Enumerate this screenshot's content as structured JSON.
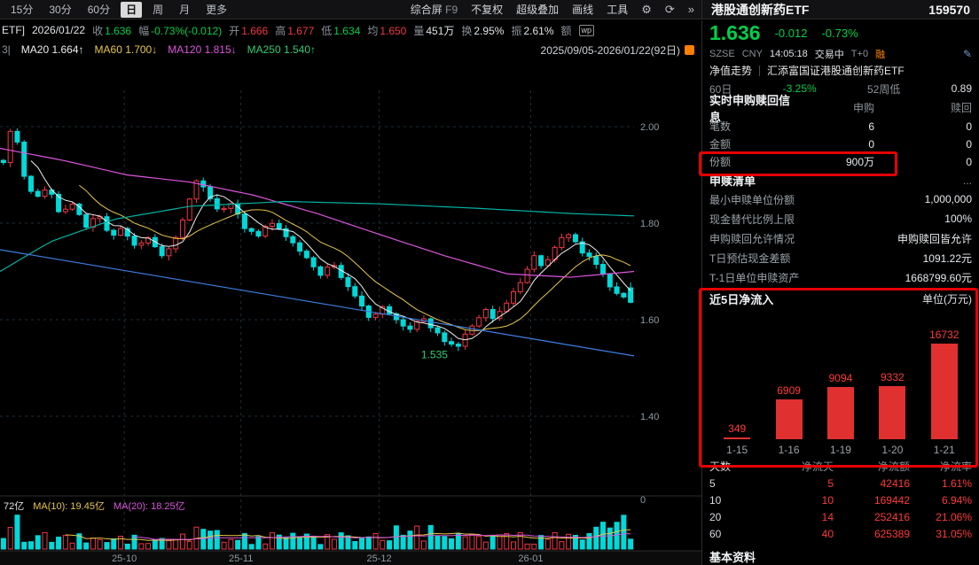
{
  "toolbar": {
    "periods": [
      "15分",
      "30分",
      "60分",
      "日",
      "周",
      "月",
      "更多"
    ],
    "active_period": "日",
    "screen_label": "综合屏",
    "f9": "F9",
    "actions": [
      "不复权",
      "超级叠加",
      "画线",
      "工具"
    ],
    "icons": {
      "gear": "⚙",
      "refresh": "⟳",
      "collapse": "»"
    }
  },
  "quote": {
    "tag": "ETF]",
    "date": "2026/01/22",
    "items": [
      {
        "label": "收",
        "value": "1.636",
        "cls": "down"
      },
      {
        "label": "幅",
        "value": "-0.73%(-0.012)",
        "cls": "down"
      },
      {
        "label": "开",
        "value": "1.666",
        "cls": "up"
      },
      {
        "label": "高",
        "value": "1.677",
        "cls": "up"
      },
      {
        "label": "低",
        "value": "1.634",
        "cls": "down"
      },
      {
        "label": "均",
        "value": "1.650",
        "cls": "up"
      },
      {
        "label": "量",
        "value": "451万",
        "cls": "wh"
      },
      {
        "label": "换",
        "value": "2.95%",
        "cls": "wh"
      },
      {
        "label": "振",
        "value": "2.61%",
        "cls": "wh"
      },
      {
        "label": "额",
        "value": "",
        "cls": "wh"
      }
    ],
    "wp_badge": "wp"
  },
  "ma_bar": {
    "prefix": "3|",
    "items": [
      {
        "label": "MA20 1.664↑",
        "color": "#ededed"
      },
      {
        "label": "MA60 1.700↓",
        "color": "#e8c64a"
      },
      {
        "label": "MA120 1.815↓",
        "color": "#dd55dd"
      },
      {
        "label": "MA250 1.540↑",
        "color": "#2ecc71"
      }
    ],
    "range": "2025/09/05-2026/01/22(92日)"
  },
  "chart_labels": {
    "low_annotation": "1.535",
    "zero": "0",
    "volume_legend": {
      "current": "72亿",
      "ma10": "MA(10): 19.45亿",
      "ma20": "MA(20): 18.25亿"
    }
  },
  "panel": {
    "title": "港股通创新药ETF",
    "code": "159570",
    "price": "1.636",
    "change": "-0.012",
    "change_pct": "-0.73%",
    "info": {
      "exchange": "SZSE",
      "currency": "CNY",
      "time": "14:05:18",
      "status": "交易中",
      "t0": "T+0",
      "margin": "融",
      "pencil": "✎"
    },
    "nav_tab": "净值走势",
    "fund_name": "汇添富国证港股通创新药ETF",
    "stats": {
      "d60_label": "60日",
      "d60": "-3.25%",
      "w52_label": "52周低",
      "w52": "0.89"
    },
    "subscribe": {
      "title": "实时申购赎回信息",
      "col_buy": "申购",
      "col_sell": "赎回",
      "rows": [
        {
          "label": "笔数",
          "buy": "6",
          "sell": "0"
        },
        {
          "label": "金额",
          "buy": "0",
          "sell": "0"
        },
        {
          "label": "份额",
          "buy": "900万",
          "sell": "0"
        }
      ]
    },
    "redemption_list": {
      "title": "申赎清单",
      "more": "...",
      "rows": [
        {
          "label": "最小申赎单位份额",
          "value": "1,000,000"
        },
        {
          "label": "现金替代比例上限",
          "value": "100%"
        },
        {
          "label": "申购赎回允许情况",
          "value": "申购赎回皆允许"
        },
        {
          "label": "T日预估现金差额",
          "value": "1091.22元"
        },
        {
          "label": "T-1日单位申赎资产",
          "value": "1668799.60元"
        }
      ]
    },
    "inflow": {
      "title": "近5日净流入",
      "unit": "单位(万元)"
    },
    "flow_table": {
      "headers": [
        "天数",
        "净流天",
        "净流额",
        "净流率"
      ],
      "rows": [
        [
          "5",
          "5",
          "42416",
          "1.61%"
        ],
        [
          "10",
          "10",
          "169442",
          "6.94%"
        ],
        [
          "20",
          "14",
          "252416",
          "21.06%"
        ],
        [
          "60",
          "40",
          "625389",
          "31.05%"
        ]
      ]
    },
    "footer_title": "基本资料"
  },
  "colors": {
    "up": "#f23645",
    "down": "#00d9d9",
    "text_red": "#ff3a3a",
    "text_green": "#00cf49",
    "bar_red": "#e03030",
    "highlight_border": "#e60000"
  },
  "chart_data": [
    {
      "type": "candlestick",
      "title": "港股通创新药ETF 日K",
      "date_range": "2025/09/05-2026/01/22",
      "num_days": 92,
      "y_ticks": [
        "2.00",
        "1.80",
        "1.60",
        "1.40"
      ],
      "x_labels": [
        {
          "label": "25-10",
          "f": 0.196
        },
        {
          "label": "25-11",
          "f": 0.38
        },
        {
          "label": "25-12",
          "f": 0.598
        },
        {
          "label": "26-01",
          "f": 0.837
        }
      ],
      "low_marker": {
        "price": 1.535,
        "day_index": 66
      },
      "last_day": {
        "open": 1.666,
        "high": 1.677,
        "low": 1.634,
        "close": 1.636
      },
      "close_anchors": [
        [
          0.0,
          1.93
        ],
        [
          0.008,
          1.975
        ],
        [
          0.016,
          2.02
        ],
        [
          0.03,
          1.9
        ],
        [
          0.05,
          1.852
        ],
        [
          0.07,
          1.878
        ],
        [
          0.09,
          1.82
        ],
        [
          0.11,
          1.842
        ],
        [
          0.13,
          1.79
        ],
        [
          0.15,
          1.818
        ],
        [
          0.17,
          1.772
        ],
        [
          0.19,
          1.792
        ],
        [
          0.21,
          1.752
        ],
        [
          0.23,
          1.772
        ],
        [
          0.25,
          1.732
        ],
        [
          0.27,
          1.758
        ],
        [
          0.29,
          1.82
        ],
        [
          0.31,
          1.898
        ],
        [
          0.325,
          1.862
        ],
        [
          0.345,
          1.82
        ],
        [
          0.365,
          1.842
        ],
        [
          0.385,
          1.792
        ],
        [
          0.405,
          1.772
        ],
        [
          0.425,
          1.8
        ],
        [
          0.445,
          1.78
        ],
        [
          0.465,
          1.752
        ],
        [
          0.485,
          1.722
        ],
        [
          0.505,
          1.692
        ],
        [
          0.525,
          1.718
        ],
        [
          0.545,
          1.672
        ],
        [
          0.565,
          1.642
        ],
        [
          0.585,
          1.602
        ],
        [
          0.605,
          1.628
        ],
        [
          0.625,
          1.6
        ],
        [
          0.645,
          1.572
        ],
        [
          0.665,
          1.608
        ],
        [
          0.685,
          1.582
        ],
        [
          0.705,
          1.552
        ],
        [
          0.725,
          1.545
        ],
        [
          0.745,
          1.582
        ],
        [
          0.765,
          1.622
        ],
        [
          0.785,
          1.602
        ],
        [
          0.805,
          1.638
        ],
        [
          0.825,
          1.682
        ],
        [
          0.845,
          1.732
        ],
        [
          0.86,
          1.705
        ],
        [
          0.875,
          1.742
        ],
        [
          0.89,
          1.768
        ],
        [
          0.905,
          1.778
        ],
        [
          0.92,
          1.742
        ],
        [
          0.94,
          1.722
        ],
        [
          0.955,
          1.7
        ],
        [
          0.97,
          1.662
        ],
        [
          0.985,
          1.648
        ],
        [
          1.0,
          1.636
        ]
      ],
      "overlays": {
        "sma": [
          {
            "color": "#ededed",
            "window": 5
          },
          {
            "color": "#e8c64a",
            "window": 12
          }
        ],
        "curves": [
          {
            "color": "#dd55dd",
            "points": [
              [
                0,
                1.955
              ],
              [
                0.1,
                1.93
              ],
              [
                0.2,
                1.9
              ],
              [
                0.3,
                1.885
              ],
              [
                0.4,
                1.858
              ],
              [
                0.5,
                1.82
              ],
              [
                0.6,
                1.776
              ],
              [
                0.7,
                1.733
              ],
              [
                0.8,
                1.695
              ],
              [
                0.9,
                1.688
              ],
              [
                1,
                1.7
              ]
            ]
          },
          {
            "color": "#00b3a4",
            "points": [
              [
                0,
                1.7
              ],
              [
                0.08,
                1.762
              ],
              [
                0.18,
                1.808
              ],
              [
                0.3,
                1.835
              ],
              [
                0.45,
                1.845
              ],
              [
                0.6,
                1.84
              ],
              [
                0.75,
                1.831
              ],
              [
                0.9,
                1.82
              ],
              [
                1,
                1.815
              ]
            ]
          },
          {
            "color": "#3d7de0",
            "points": [
              [
                0,
                1.745
              ],
              [
                1,
                1.525
              ]
            ]
          }
        ]
      }
    },
    {
      "type": "bar",
      "title": "近5日净流入",
      "unit": "万元",
      "categories": [
        "1-15",
        "1-16",
        "1-19",
        "1-20",
        "1-21"
      ],
      "values": [
        349,
        6909,
        9094,
        9332,
        16732
      ],
      "bar_color": "#e03030"
    }
  ]
}
